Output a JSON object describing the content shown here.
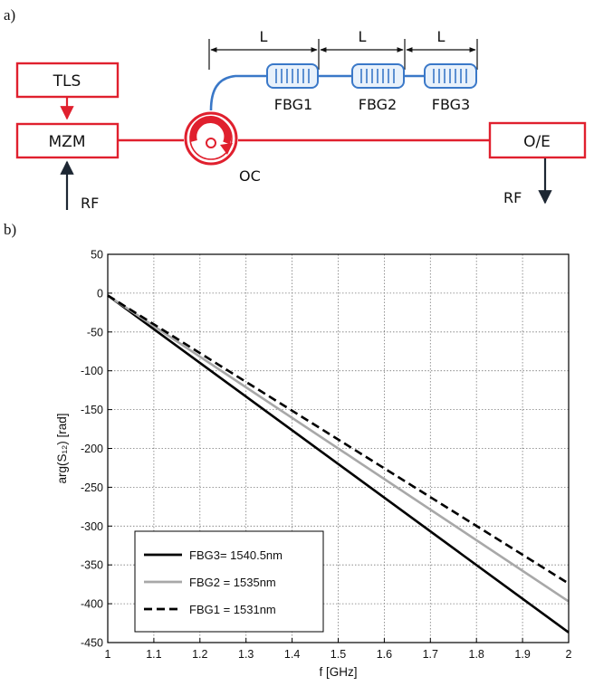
{
  "panel_a": {
    "label": "a)",
    "blocks": {
      "tls": "TLS",
      "mzm": "MZM",
      "oe": "O/E"
    },
    "rf_in": "RF",
    "rf_out": "RF",
    "circulator": "OC",
    "section_length": "L",
    "gratings": [
      "FBG1",
      "FBG2",
      "FBG3"
    ],
    "colors": {
      "block": "#e0202e",
      "fiber_red": "#e0202e",
      "fiber_blue": "#3a78c8",
      "grating_fill": "#e8f1fb"
    }
  },
  "panel_b": {
    "label": "b)"
  },
  "chart_data": {
    "type": "line",
    "xlabel": "f [GHz]",
    "ylabel": "arg(S₁₂) [rad]",
    "xlim": [
      1,
      2
    ],
    "ylim": [
      -450,
      50
    ],
    "xticks": [
      "1",
      "1.1",
      "1.2",
      "1.3",
      "1.4",
      "1.5",
      "1.6",
      "1.7",
      "1.8",
      "1.9",
      "2"
    ],
    "yticks": [
      "50",
      "0",
      "-50",
      "-100",
      "-150",
      "-200",
      "-250",
      "-300",
      "-350",
      "-400",
      "-450"
    ],
    "grid": true,
    "legend_position": "bottom-left",
    "series": [
      {
        "name": "FBG3= 1540.5nm",
        "color": "#000000",
        "style": "solid",
        "x": [
          1,
          2
        ],
        "y": [
          -3,
          -437
        ]
      },
      {
        "name": "FBG2 = 1535nm",
        "color": "#a8a8a8",
        "style": "solid",
        "x": [
          1,
          2
        ],
        "y": [
          -3,
          -397
        ]
      },
      {
        "name": "FBG1 = 1531nm",
        "color": "#000000",
        "style": "dashed",
        "x": [
          1,
          2
        ],
        "y": [
          -3,
          -374
        ]
      }
    ]
  }
}
